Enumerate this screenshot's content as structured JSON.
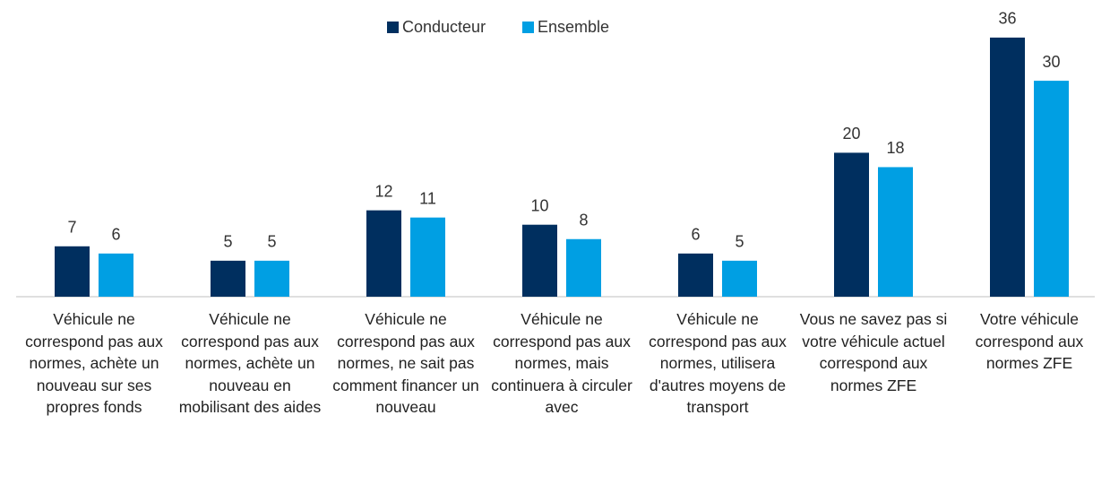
{
  "chart_data": {
    "type": "bar",
    "categories": [
      "Véhicule ne correspond pas aux normes, achète un nouveau sur ses propres fonds",
      "Véhicule ne correspond pas aux normes, achète un nouveau en mobilisant des aides",
      "Véhicule ne correspond pas aux normes, ne sait pas comment financer un nouveau",
      "Véhicule ne correspond pas aux normes, mais continuera à circuler avec",
      "Véhicule ne correspond pas aux normes, utilisera d'autres moyens de transport",
      "Vous ne savez pas si votre véhicule actuel correspond aux normes ZFE",
      "Votre véhicule correspond aux normes ZFE"
    ],
    "series": [
      {
        "name": "Conducteur",
        "color": "#002f5f",
        "values": [
          7,
          5,
          12,
          10,
          6,
          20,
          36
        ]
      },
      {
        "name": "Ensemble",
        "color": "#009fe3",
        "values": [
          6,
          5,
          11,
          8,
          5,
          18,
          30
        ]
      }
    ],
    "legend": "top"
  }
}
